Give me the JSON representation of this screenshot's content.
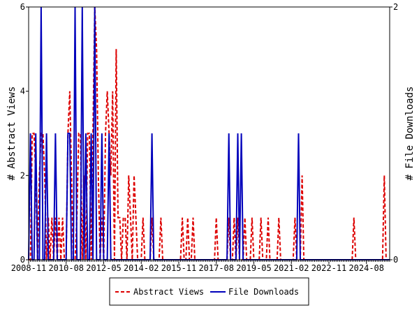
{
  "chart_data": {
    "type": "line",
    "start_month": "2008-11",
    "end_month": "2025-09",
    "x_tick_labels": [
      "2008-11",
      "2010-08",
      "2012-05",
      "2014-02",
      "2015-11",
      "2017-08",
      "2019-05",
      "2021-02",
      "2022-11",
      "2024-08"
    ],
    "y_left": {
      "label": "# Abstract Views",
      "ylim": [
        0,
        6
      ],
      "ticks": [
        "0",
        "2",
        "4",
        "6"
      ]
    },
    "y_right": {
      "label": "# File Downloads",
      "ylim": [
        0,
        2
      ],
      "ticks": [
        "0",
        "2"
      ]
    },
    "legend_placement": "bottom-center",
    "series": [
      {
        "name": "Abstract Views",
        "axis": "left",
        "color": "#dd0000",
        "style": "dashed",
        "values": {
          "2009-01": 3,
          "2009-02": 3,
          "2009-03": 2,
          "2009-05": 2,
          "2009-06": 3,
          "2009-07": 3,
          "2009-08": 2,
          "2009-10": 1,
          "2009-12": 1,
          "2010-02": 1,
          "2010-04": 1,
          "2010-06": 1,
          "2010-09": 3,
          "2010-10": 4,
          "2010-11": 2,
          "2011-02": 1,
          "2011-03": 3,
          "2011-04": 3,
          "2011-06": 2,
          "2011-08": 3,
          "2011-09": 3,
          "2011-11": 3,
          "2011-12": 6,
          "2012-01": 5,
          "2012-02": 2,
          "2012-04": 1,
          "2012-06": 3,
          "2012-07": 4,
          "2012-08": 3,
          "2012-09": 2,
          "2012-10": 4,
          "2012-12": 5,
          "2013-01": 1,
          "2013-02": 1,
          "2013-04": 1,
          "2013-05": 1,
          "2013-07": 2,
          "2013-08": 1,
          "2013-10": 2,
          "2013-11": 1,
          "2014-03": 1,
          "2014-08": 1,
          "2015-01": 1,
          "2016-01": 1,
          "2016-04": 1,
          "2016-07": 1,
          "2017-08": 1,
          "2018-03": 1,
          "2018-06": 1,
          "2018-08": 1,
          "2018-12": 1,
          "2019-04": 1,
          "2019-09": 1,
          "2020-01": 1,
          "2020-07": 1,
          "2021-04": 1,
          "2021-08": 2,
          "2024-01": 1,
          "2025-06": 2
        }
      },
      {
        "name": "File Downloads",
        "axis": "right",
        "color": "#0000bb",
        "style": "solid",
        "values": {
          "2008-12": 1,
          "2009-03": 1,
          "2009-06": 2,
          "2009-09": 1,
          "2010-02": 1,
          "2010-09": 1,
          "2010-10": 1,
          "2011-01": 2,
          "2011-05": 2,
          "2011-07": 1,
          "2011-10": 1,
          "2011-12": 2,
          "2012-04": 1,
          "2012-08": 1,
          "2014-08": 1,
          "2018-03": 1,
          "2018-08": 1,
          "2018-10": 1,
          "2021-06": 1
        }
      }
    ]
  }
}
